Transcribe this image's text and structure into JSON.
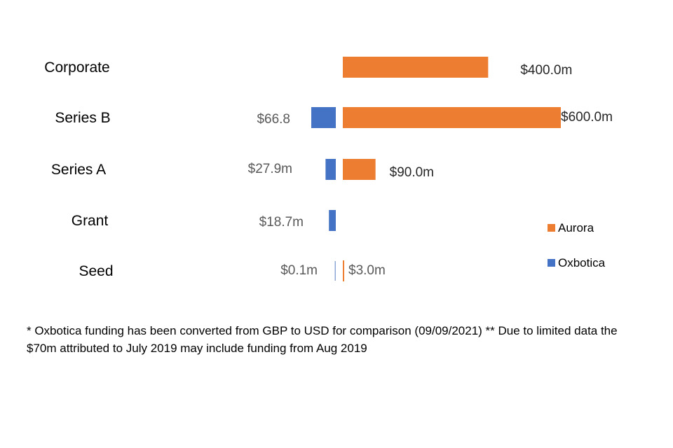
{
  "chart_data": {
    "type": "bar",
    "orientation": "horizontal-diverging",
    "categories": [
      "Corporate",
      "Series B",
      "Series A",
      "Grant",
      "Seed"
    ],
    "series": [
      {
        "name": "Aurora",
        "color": "#ED7D31",
        "values": [
          400.0,
          600.0,
          90.0,
          null,
          3.0
        ],
        "labels": [
          "$400.0m",
          "$600.0m",
          "$90.0m",
          "",
          "$3.0m"
        ]
      },
      {
        "name": "Oxbotica",
        "color": "#4472C4",
        "values": [
          null,
          66.8,
          27.9,
          18.7,
          0.1
        ],
        "labels": [
          "",
          "$66.8",
          "$27.9m",
          "$18.7m",
          "$0.1m"
        ]
      }
    ],
    "legend": [
      "Aurora",
      "Oxbotica"
    ],
    "legend_position": "right",
    "title": "",
    "xlabel": "",
    "ylabel": "",
    "units": "USD millions"
  },
  "footnote": "* Oxbotica funding has been converted from GBP to USD for comparison (09/09/2021) ** Due to limited data the $70m attributed to July 2019 may include funding from Aug 2019"
}
